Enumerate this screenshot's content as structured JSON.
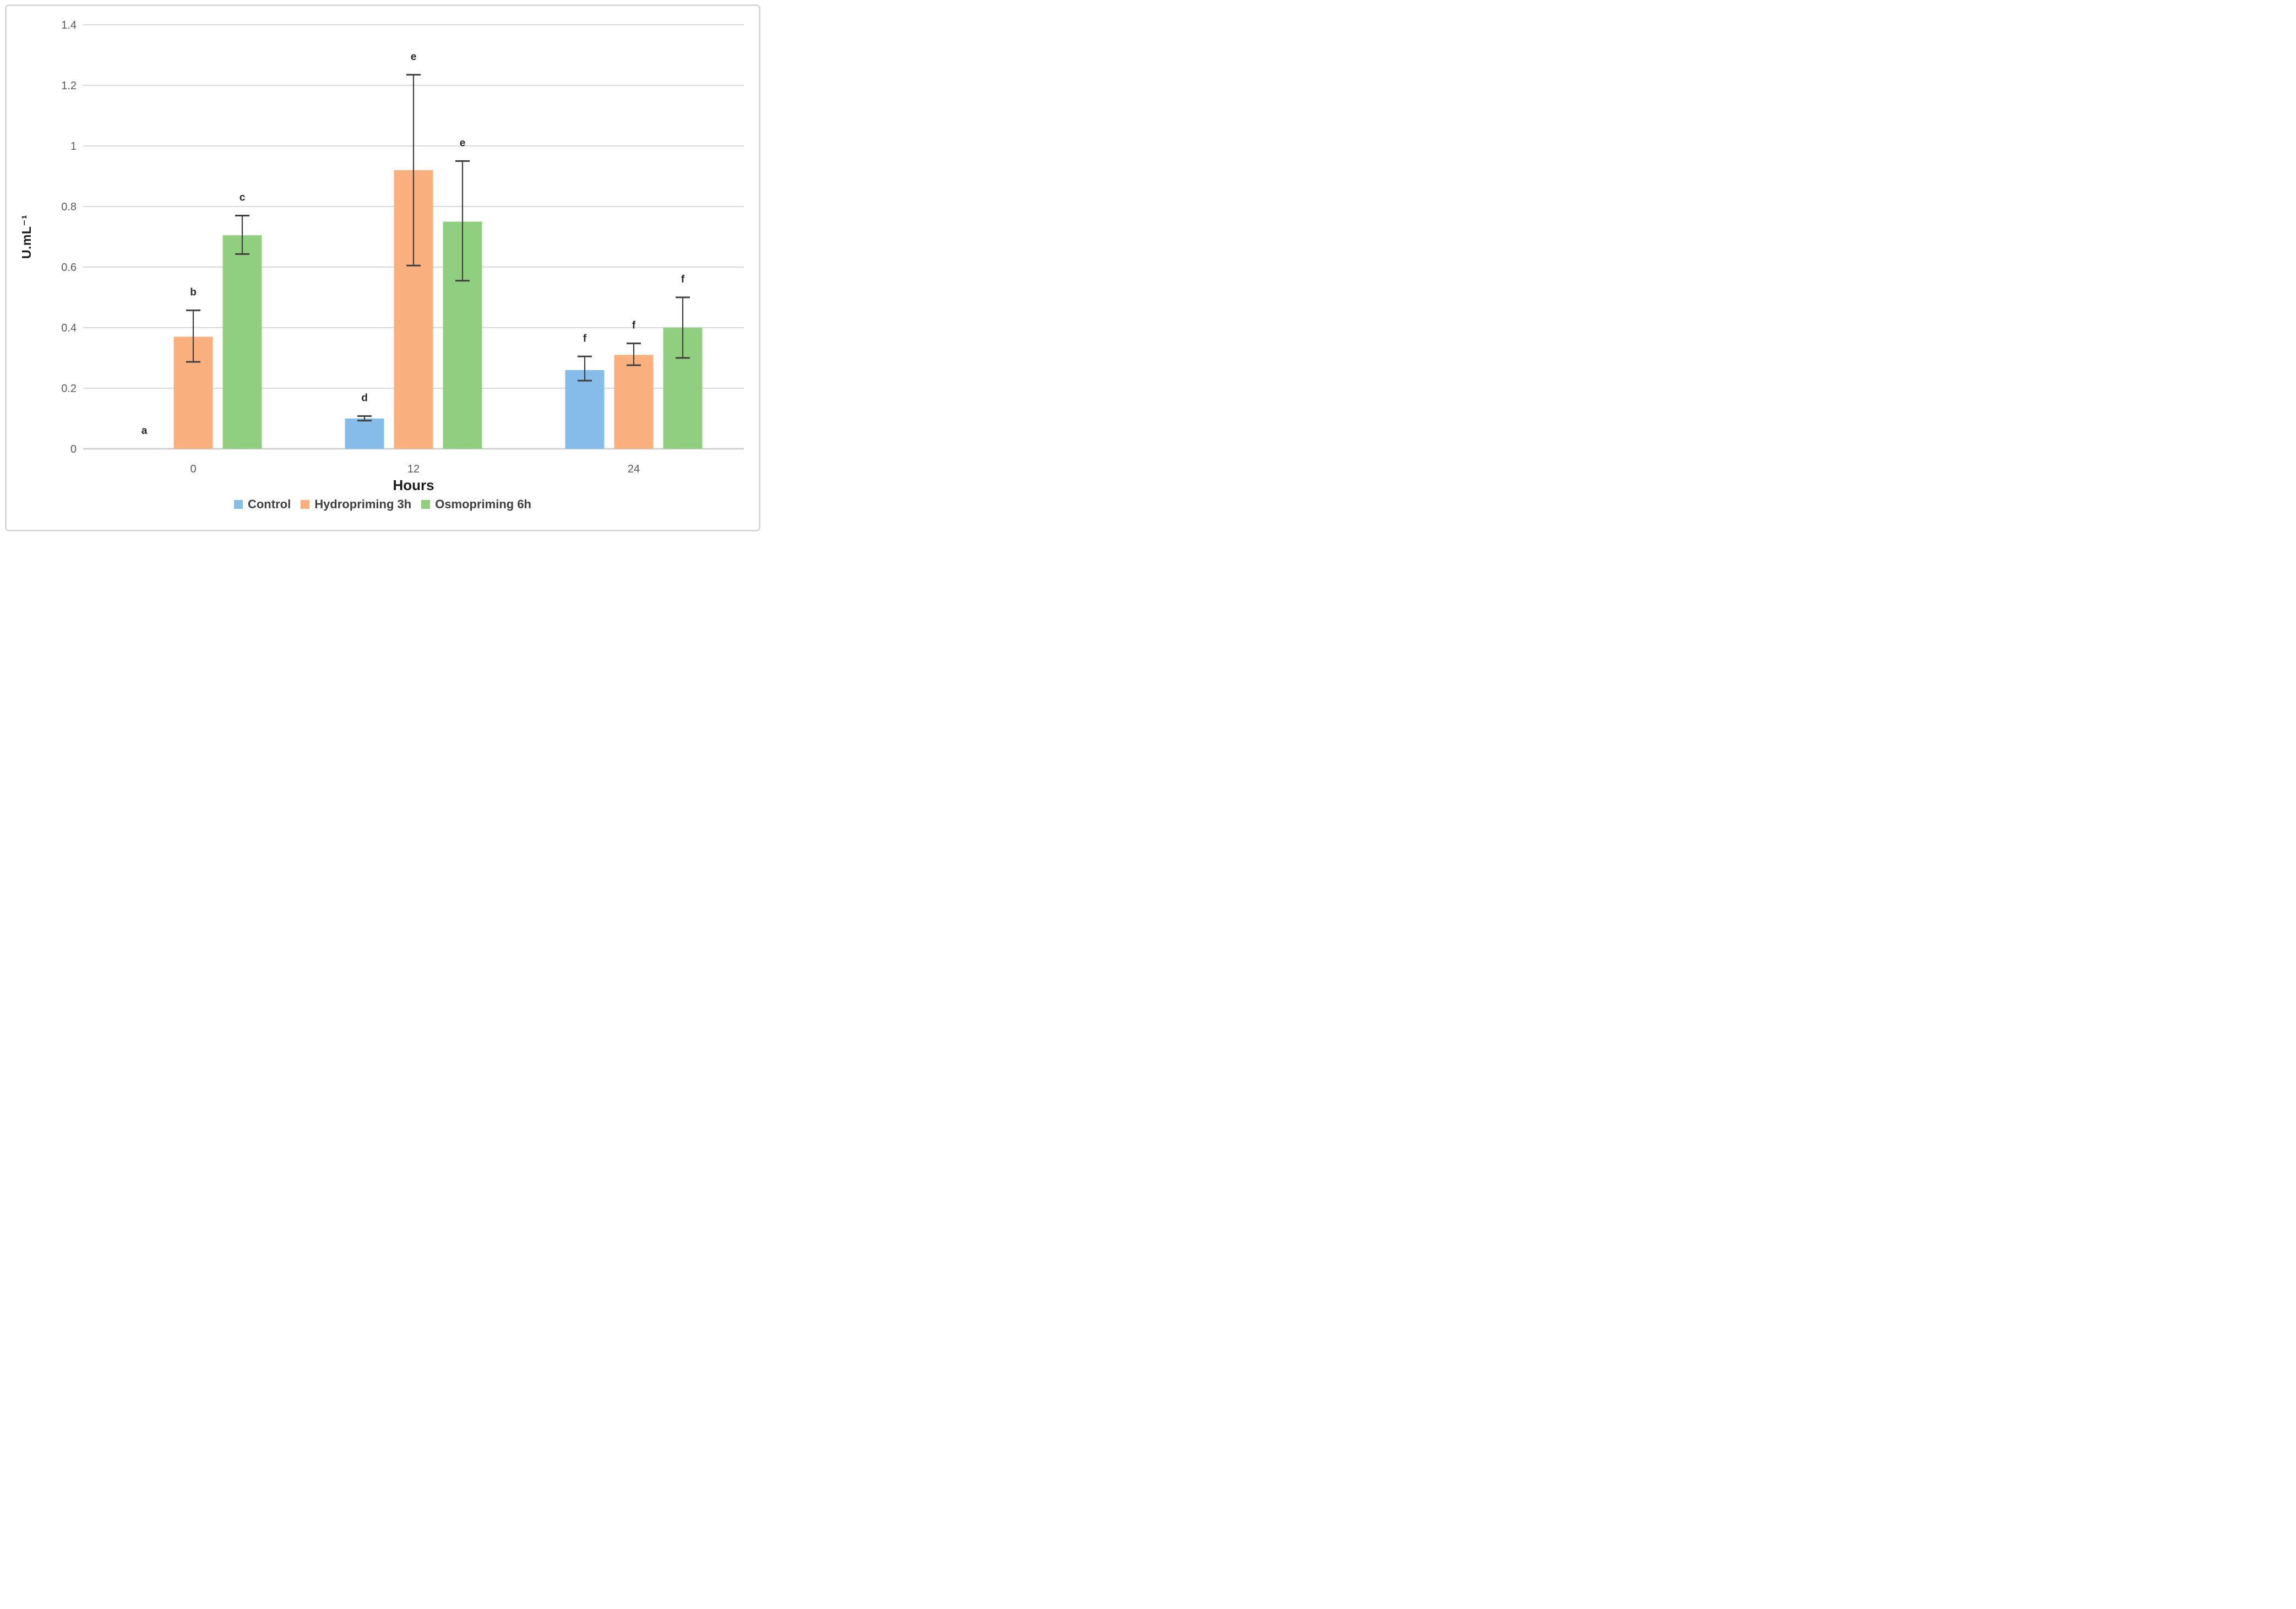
{
  "figure": {
    "background_color": "#ffffff",
    "frame_border_color": "#d9d9d9"
  },
  "chart_data": {
    "type": "bar",
    "title": "",
    "xlabel": "Hours",
    "ylabel": "U.mL⁻¹",
    "categories": [
      "0",
      "12",
      "24"
    ],
    "y_axis": {
      "min": 0,
      "max": 1.4,
      "step": 0.2,
      "tick_labels": [
        "0",
        "0.2",
        "0.4",
        "0.6",
        "0.8",
        "1",
        "1.2",
        "1.4"
      ]
    },
    "grid": "horizontal",
    "legend_position": "bottom",
    "series": [
      {
        "name": "Control",
        "color": "#85BDE8",
        "values": [
          0,
          0.1,
          0.26
        ],
        "error_low": [
          null,
          0.093,
          0.225
        ],
        "error_high": [
          null,
          0.108,
          0.305
        ],
        "letters": [
          "a",
          "d",
          "f"
        ]
      },
      {
        "name": "Hydropriming 3h",
        "color": "#F9B07E",
        "values": [
          0.37,
          0.92,
          0.31
        ],
        "error_low": [
          0.287,
          0.605,
          0.276
        ],
        "error_high": [
          0.457,
          1.235,
          0.348
        ],
        "letters": [
          "b",
          "e",
          "f"
        ]
      },
      {
        "name": "Osmopriming 6h",
        "color": "#90CF7F",
        "values": [
          0.705,
          0.75,
          0.4
        ],
        "error_low": [
          0.643,
          0.555,
          0.3
        ],
        "error_high": [
          0.77,
          0.95,
          0.5
        ],
        "letters": [
          "c",
          "e",
          "f"
        ]
      }
    ],
    "style_colors": {
      "gridline": "#d9d9d9",
      "axis_line": "#d0d0d0",
      "tick_label": "#595959",
      "error_bar": "#404040",
      "letter": "#262626",
      "axis_title": "#1a1a1a",
      "legend_text": "#3f3f3f"
    }
  }
}
